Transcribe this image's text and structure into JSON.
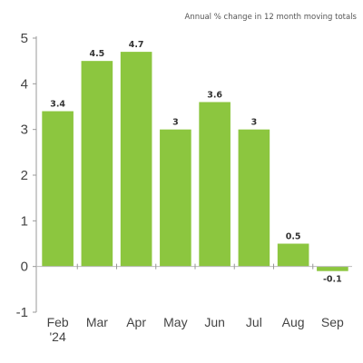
{
  "chart_data": {
    "type": "bar",
    "title": "",
    "subtitle": "Annual % change in 12 month moving totals",
    "xlabel": "",
    "ylabel": "",
    "categories": [
      "Feb\n'24",
      "Mar",
      "Apr",
      "May",
      "Jun",
      "Jul",
      "Aug",
      "Sep"
    ],
    "values": [
      3.4,
      4.5,
      4.7,
      3,
      3.6,
      3,
      0.5,
      -0.1
    ],
    "data_labels": [
      "3.4",
      "4.5",
      "4.7",
      "3",
      "3.6",
      "3",
      "0.5",
      "-0.1"
    ],
    "ylim": [
      -1,
      5
    ],
    "yticks": [
      -1,
      0,
      1,
      2,
      3,
      4,
      5
    ],
    "grid": false,
    "colors": {
      "bar": "#8cc63f",
      "axis": "#999999"
    }
  }
}
